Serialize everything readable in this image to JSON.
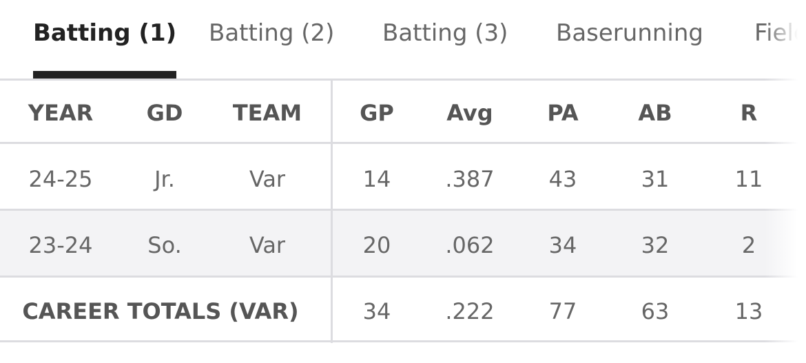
{
  "tabs": [
    "Batting (1)",
    "Batting (2)",
    "Batting (3)",
    "Baserunning",
    "Fielding"
  ],
  "active_tab": 0,
  "table": {
    "headers": [
      "YEAR",
      "GD",
      "TEAM",
      "GP",
      "Avg",
      "PA",
      "AB",
      "R"
    ],
    "rows": [
      [
        "24-25",
        "Jr.",
        "Var",
        "14",
        ".387",
        "43",
        "31",
        "11"
      ],
      [
        "23-24",
        "So.",
        "Var",
        "20",
        ".062",
        "34",
        "32",
        "2"
      ]
    ],
    "totals": {
      "label": "CAREER TOTALS (VAR)",
      "values": [
        "34",
        ".222",
        "77",
        "63",
        "13"
      ]
    }
  }
}
